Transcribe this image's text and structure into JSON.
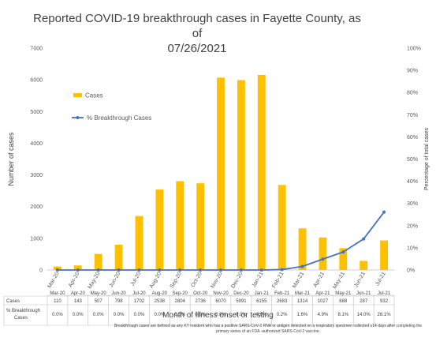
{
  "chart_data": {
    "type": "bar",
    "title_line1": "Reported COVID-19 breakthrough cases in Fayette County, as of",
    "title_line2": "07/26/2021",
    "categories": [
      "Mar-20",
      "Apr-20",
      "May-20",
      "Jun-20",
      "Jul-20",
      "Aug-20",
      "Sep-20",
      "Oct-20",
      "Nov-20",
      "Dec-20",
      "Jan-21",
      "Feb-21",
      "Mar-21",
      "Apr-21",
      "May-21",
      "Jun-21",
      "Jul-21"
    ],
    "series": [
      {
        "name": "Cases",
        "type": "bar",
        "axis": "left",
        "color": "#FFC000",
        "values": [
          110,
          143,
          507,
          798,
          1702,
          2538,
          2804,
          2736,
          6070,
          5991,
          6155,
          2683,
          1314,
          1027,
          688,
          287,
          932
        ]
      },
      {
        "name": "% Breakthrough Cases",
        "type": "line",
        "axis": "right",
        "color": "#4472C4",
        "values": [
          0.0,
          0.0,
          0.0,
          0.0,
          0.0,
          0.0,
          0.0,
          0.0,
          0.0,
          0.0,
          0.0,
          0.2,
          1.6,
          4.9,
          8.1,
          14.0,
          26.1
        ]
      }
    ],
    "ylabel": "Number of cases",
    "y2label": "Percentage of total cases",
    "xlabel": "Month of illness onset or testing",
    "ylim": [
      0,
      7000
    ],
    "y2lim": [
      0,
      100
    ],
    "yticks": [
      "0",
      "1000",
      "2000",
      "3000",
      "4000",
      "5000",
      "6000",
      "7000"
    ],
    "y2ticks": [
      "0%",
      "10%",
      "20%",
      "30%",
      "40%",
      "50%",
      "60%",
      "70%",
      "80%",
      "90%",
      "100%"
    ],
    "grid": false,
    "legend_position": "top-left",
    "table_rows": [
      {
        "label": "Cases",
        "values": [
          "110",
          "143",
          "507",
          "798",
          "1702",
          "2538",
          "2804",
          "2736",
          "6070",
          "5991",
          "6155",
          "2683",
          "1314",
          "1027",
          "688",
          "287",
          "932"
        ]
      },
      {
        "label": "% Breakthrough Cases",
        "values": [
          "0.0%",
          "0.0%",
          "0.0%",
          "0.0%",
          "0.0%",
          "0.0%",
          "0.0%",
          "0.0%",
          "0.0%",
          "0.0%",
          "0.0%",
          "0.2%",
          "1.6%",
          "4.9%",
          "8.1%",
          "14.0%",
          "26.1%"
        ]
      }
    ],
    "footnote": "Breakthrough cases are defined as any KY resident who has a positive SARS-CoV-2 RNA or antigen detected on a respiratory specimen collected ≥14 days after completing the primary series of an FDA -authorized SARS-CoV-2 vaccine."
  }
}
